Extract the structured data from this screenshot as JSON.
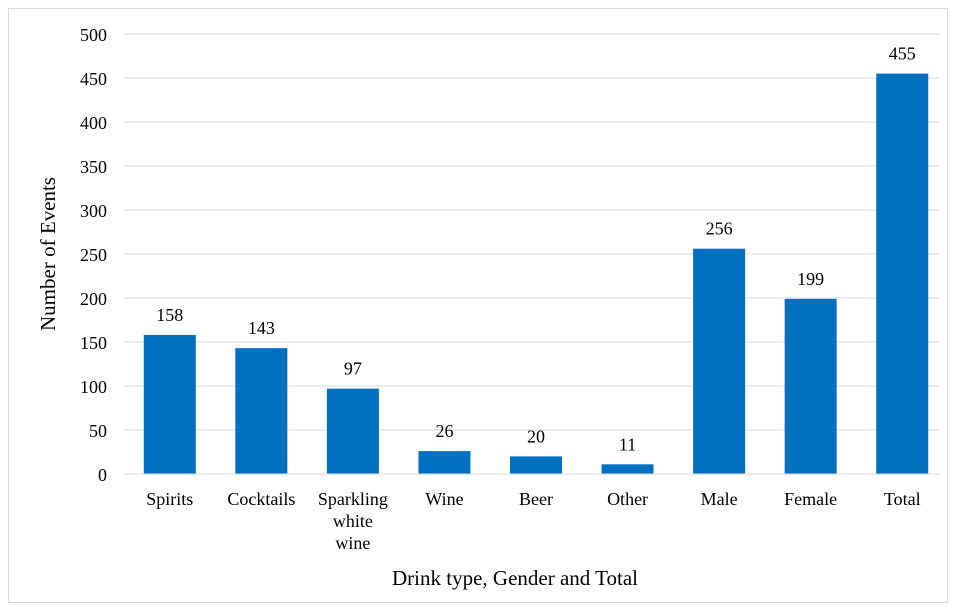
{
  "chart_data": {
    "type": "bar",
    "title": "",
    "xlabel": "Drink type, Gender and Total",
    "ylabel": "Number of Events",
    "categories": [
      [
        "Spirits"
      ],
      [
        "Cocktails"
      ],
      [
        "Sparkling",
        "white",
        "wine"
      ],
      [
        "Wine"
      ],
      [
        "Beer"
      ],
      [
        "Other"
      ],
      [
        "Male"
      ],
      [
        "Female"
      ],
      [
        "Total"
      ]
    ],
    "values": [
      158,
      143,
      97,
      26,
      20,
      11,
      256,
      199,
      455
    ],
    "ylim": [
      0,
      500
    ],
    "yticks": [
      0,
      50,
      100,
      150,
      200,
      250,
      300,
      350,
      400,
      450,
      500
    ],
    "grid": true,
    "legend": "none",
    "bar_color": "#0070C0",
    "grid_color": "#d9d9d9"
  }
}
